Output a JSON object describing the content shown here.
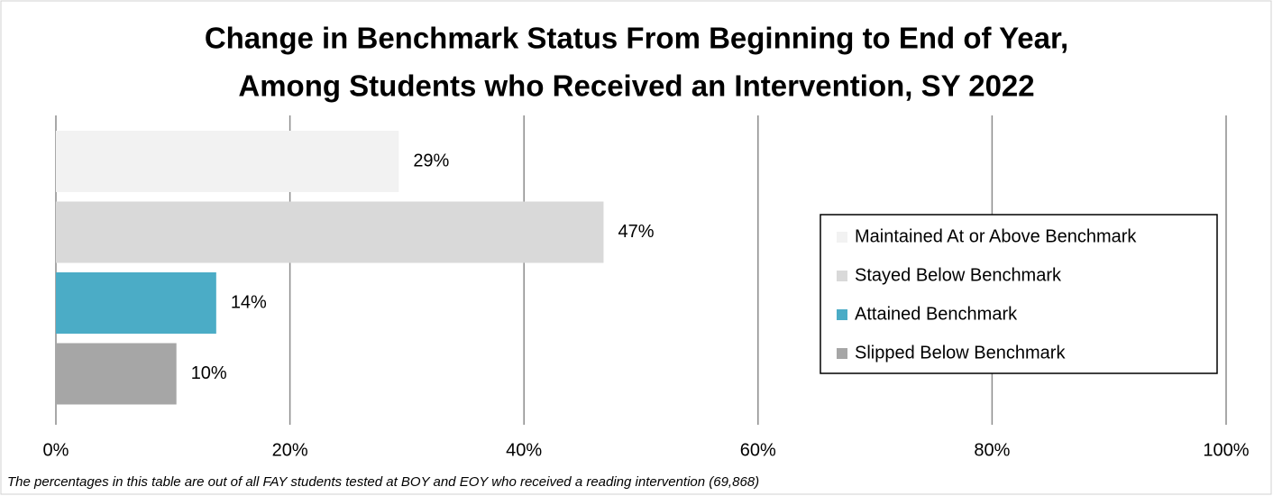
{
  "chart_data": {
    "type": "hbar",
    "title": [
      "Change in Benchmark Status From Beginning to End of Year,",
      "Among Students who Received an Intervention, SY 2022"
    ],
    "series": [
      {
        "name": "Maintained At or Above Benchmark",
        "color": "#f2f2f2",
        "values": [
          29.3
        ],
        "value_labels": [
          "29%"
        ]
      },
      {
        "name": "Stayed Below Benchmark",
        "color": "#d9d9d9",
        "values": [
          46.8
        ],
        "value_labels": [
          "47%"
        ]
      },
      {
        "name": "Attained Benchmark",
        "color": "#4bacc6",
        "values": [
          13.7
        ],
        "value_labels": [
          "14%"
        ]
      },
      {
        "name": "Slipped Below Benchmark",
        "color": "#a6a6a6",
        "values": [
          10.3
        ],
        "value_labels": [
          "10%"
        ]
      }
    ],
    "xlim": [
      0,
      100
    ],
    "xticks": [
      {
        "value": 0,
        "label": "0%"
      },
      {
        "value": 20,
        "label": "20%"
      },
      {
        "value": 40,
        "label": "40%"
      },
      {
        "value": 60,
        "label": "60%"
      },
      {
        "value": 80,
        "label": "80%"
      },
      {
        "value": 100,
        "label": "100%"
      }
    ],
    "grid": true,
    "legend": "right",
    "note": "The percentages in this table are out of all FAY students tested at BOY and EOY who received a reading intervention (69,868)"
  }
}
